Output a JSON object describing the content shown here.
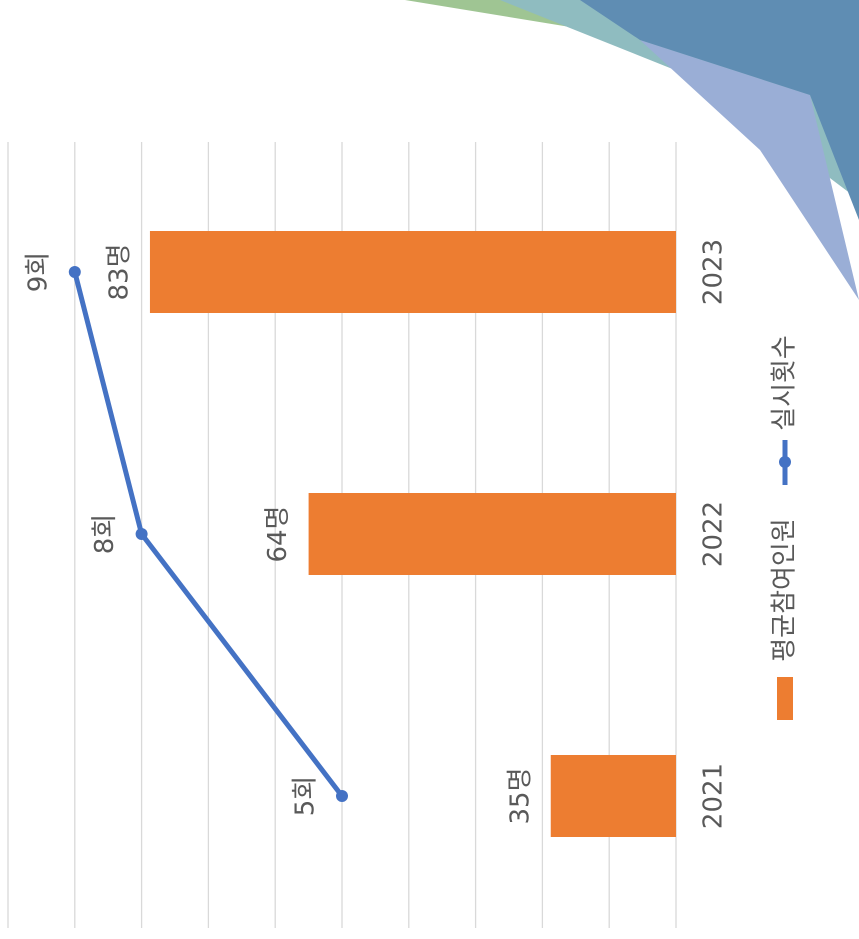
{
  "chart_data": {
    "type": "combo",
    "categories": [
      "2021",
      "2022",
      "2023"
    ],
    "series": [
      {
        "name": "평균참여인원",
        "type": "bar",
        "color": "#ED7D31",
        "values": [
          35,
          64,
          83
        ],
        "value_labels": [
          "35명",
          "64명",
          "83명"
        ]
      },
      {
        "name": "실시횟수",
        "type": "line",
        "axis": "y2",
        "color": "#4472C4",
        "values": [
          5,
          8,
          9
        ],
        "value_labels": [
          "5회",
          "8회",
          "9회"
        ]
      }
    ],
    "ylim": [
      20,
      100
    ],
    "y2lim": [
      0,
      10
    ],
    "y2ticks": [
      0,
      1,
      2,
      3,
      4,
      5,
      6,
      7,
      8,
      9,
      10
    ],
    "grid": true
  }
}
